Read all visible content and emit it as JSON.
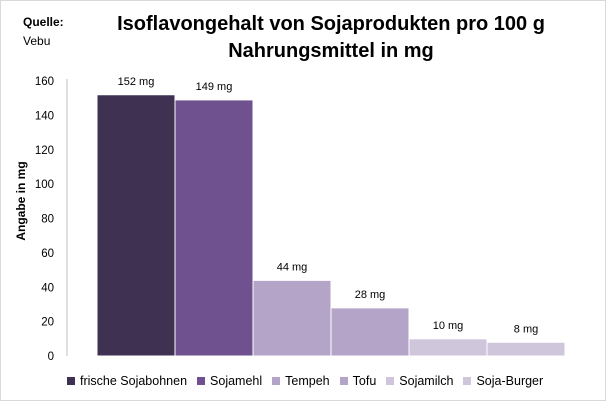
{
  "source": {
    "label": "Quelle:",
    "value": "Vebu"
  },
  "chart_data": {
    "type": "bar",
    "title": "Isoflavongehalt von Sojaprodukten pro 100 g Nahrungsmittel in mg",
    "title_lines": [
      "Isoflavongehalt von Sojaprodukten pro 100 g",
      "Nahrungsmittel in mg"
    ],
    "ylabel": "Angabe in mg",
    "xlabel": "",
    "ylim": [
      0,
      160
    ],
    "yticks": [
      0,
      20,
      40,
      60,
      80,
      100,
      120,
      140,
      160
    ],
    "grid": false,
    "legend_position": "bottom",
    "categories": [
      "frische Sojabohnen",
      "Sojamehl",
      "Tempeh",
      "Tofu",
      "Sojamilch",
      "Soja-Burger"
    ],
    "values": [
      152,
      149,
      44,
      28,
      10,
      8
    ],
    "data_labels": [
      "152 mg",
      "149 mg",
      "44 mg",
      "28 mg",
      "10 mg",
      "8 mg"
    ],
    "colors": [
      "#3f3152",
      "#6f5190",
      "#b4a5c8",
      "#b4a5c8",
      "#cfc6dc",
      "#cfc6dc"
    ]
  }
}
